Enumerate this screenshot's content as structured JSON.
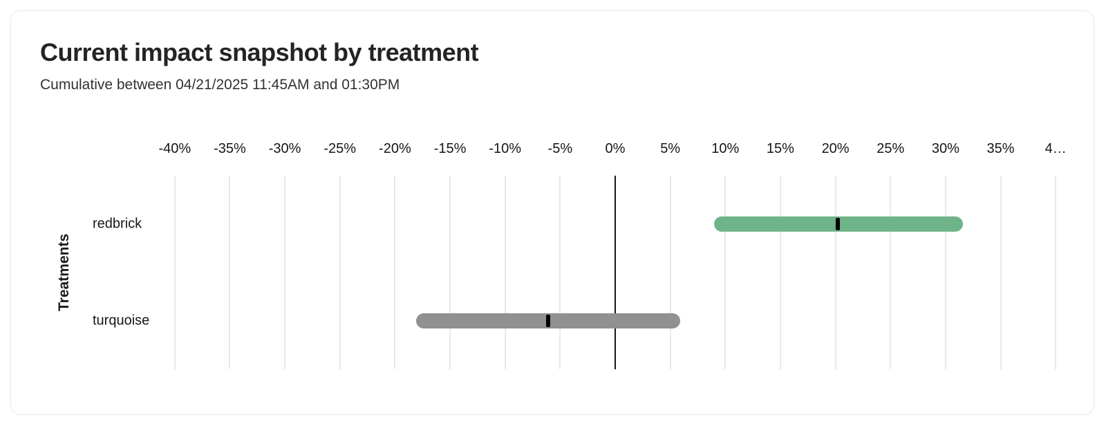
{
  "card": {
    "title": "Current impact snapshot by treatment",
    "subtitle": "Cumulative between 04/21/2025 11:45AM and 01:30PM"
  },
  "chart_data": {
    "type": "bar",
    "orientation": "horizontal",
    "subtype": "range-interval-with-midpoint-marker",
    "title": "Current impact snapshot by treatment",
    "subtitle": "Cumulative between 04/21/2025 11:45AM and 01:30PM",
    "x_axis": {
      "unit": "%",
      "label_position": "top",
      "range": [
        -42.5,
        42.5
      ],
      "ticks": [
        -40,
        -35,
        -30,
        -25,
        -20,
        -15,
        -10,
        -5,
        0,
        5,
        10,
        15,
        20,
        25,
        30,
        35,
        40
      ],
      "tick_labels": [
        "-40%",
        "-35%",
        "-30%",
        "-25%",
        "-20%",
        "-15%",
        "-10%",
        "-5%",
        "0%",
        "5%",
        "10%",
        "15%",
        "20%",
        "25%",
        "30%",
        "35%",
        "4…"
      ]
    },
    "y_axis": {
      "label": "Treatments",
      "categories": [
        "redbrick",
        "turquoise"
      ]
    },
    "series": [
      {
        "name": "redbrick",
        "low": 9.0,
        "mid": 20.2,
        "high": 31.6,
        "color": "#6fb389"
      },
      {
        "name": "turquoise",
        "low": -18.1,
        "mid": -6.1,
        "high": 5.9,
        "color": "#919191"
      }
    ],
    "marker_color": "#000000",
    "grid": true,
    "grid_color": "#e9e9e9",
    "zero_line": true,
    "zero_line_color": "#161616",
    "legend": "none"
  }
}
